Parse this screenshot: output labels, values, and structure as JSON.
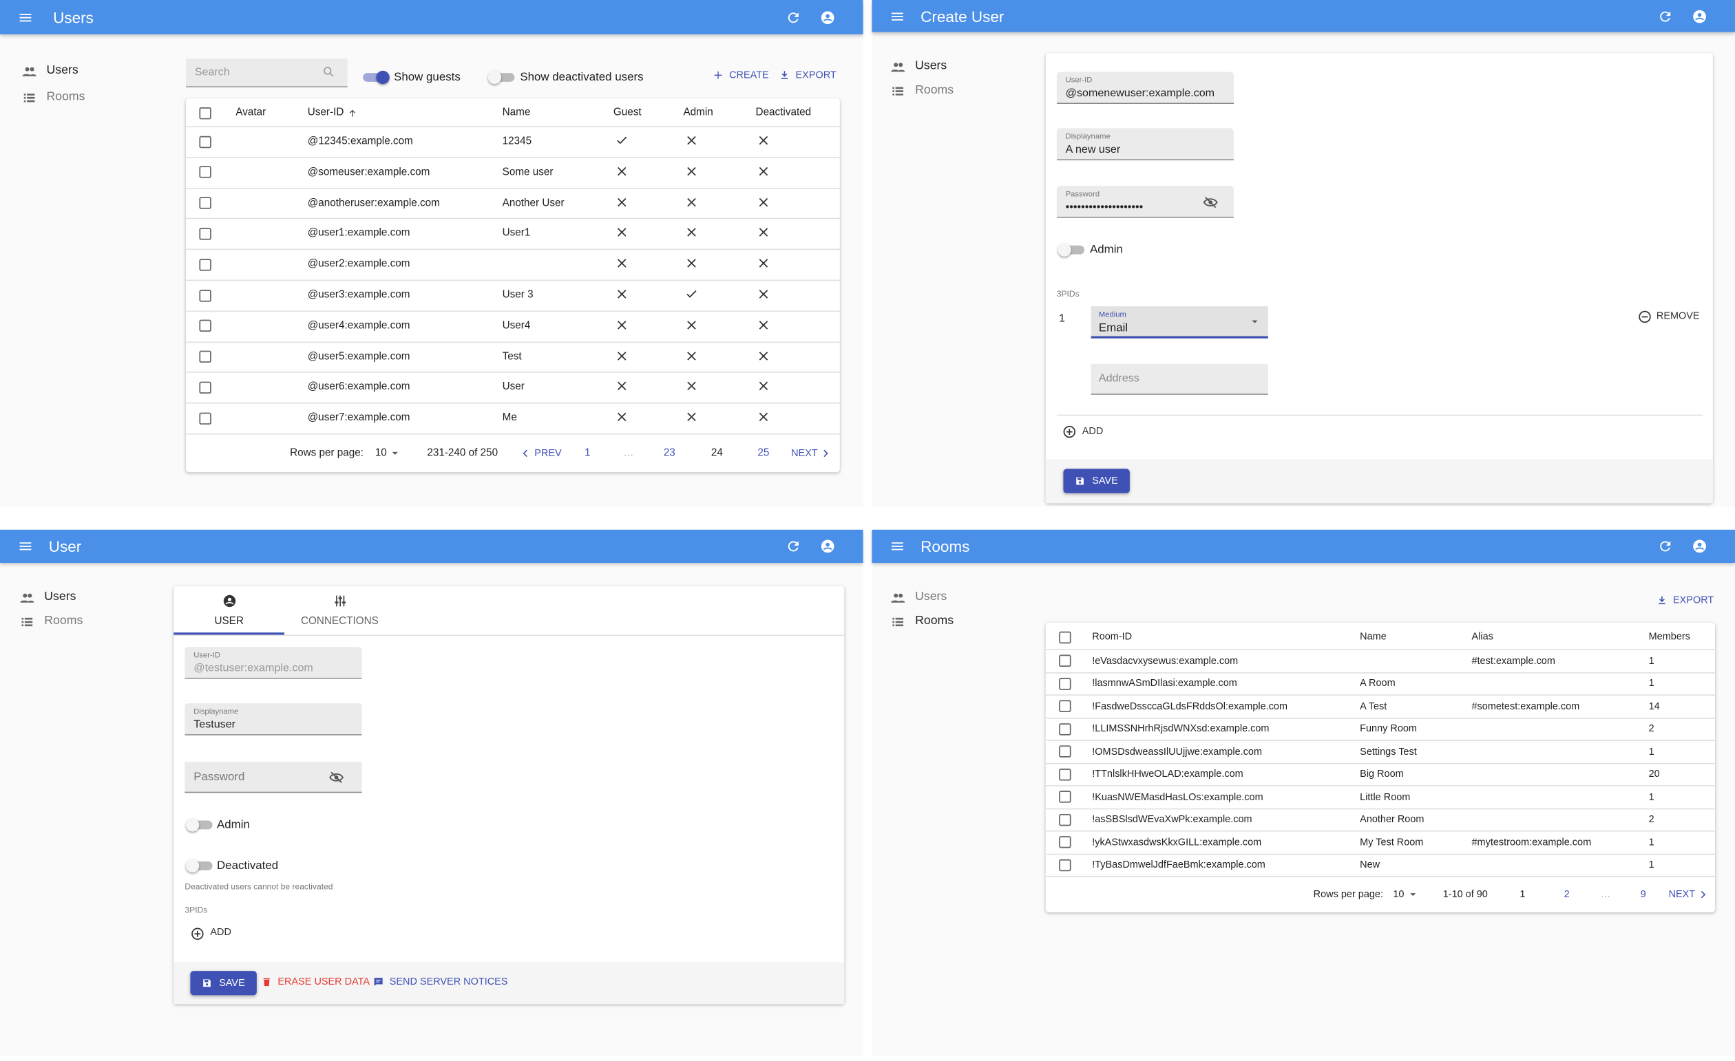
{
  "users_list": {
    "app_title": "Users",
    "nav": [
      "Users",
      "Rooms"
    ],
    "search_placeholder": "Search",
    "show_guests": "Show guests",
    "show_deactivated": "Show deactivated users",
    "create": "CREATE",
    "export": "EXPORT",
    "columns": [
      "Avatar",
      "User-ID",
      "Name",
      "Guest",
      "Admin",
      "Deactivated"
    ],
    "rows": [
      [
        "@12345:example.com",
        "12345",
        true,
        false,
        false
      ],
      [
        "@someuser:example.com",
        "Some user",
        false,
        false,
        false
      ],
      [
        "@anotheruser:example.com",
        "Another User",
        false,
        false,
        false
      ],
      [
        "@user1:example.com",
        "User1",
        false,
        false,
        false
      ],
      [
        "@user2:example.com",
        null,
        false,
        false,
        false
      ],
      [
        "@user3:example.com",
        "User 3",
        false,
        true,
        false
      ],
      [
        "@user4:example.com",
        "User4",
        false,
        false,
        false
      ],
      [
        "@user5:example.com",
        "Test",
        false,
        false,
        false
      ],
      [
        "@user6:example.com",
        "User",
        false,
        false,
        false
      ],
      [
        "@user7:example.com",
        "Me",
        false,
        false,
        false
      ]
    ],
    "pagination": {
      "rows_per_page_label": "Rows per page:",
      "rows_per_page": "10",
      "range": "231-240 of 250",
      "prev": "PREV",
      "pages": [
        "1",
        "…",
        "23",
        "24",
        "25"
      ],
      "next": "NEXT"
    }
  },
  "create_user": {
    "app_title": "Create User",
    "nav": [
      "Users",
      "Rooms"
    ],
    "fields": [
      {
        "label": "User-ID",
        "value": "@somenewuser:example.com"
      },
      {
        "label": "Displayname",
        "value": "A new user"
      },
      {
        "label": "Password",
        "value": "••••••••••••••••••••"
      }
    ],
    "admin": "Admin",
    "threepids_label": "3PIDs",
    "index": "1",
    "medium_label": "Medium",
    "medium_value": "Email",
    "address_placeholder": "Address",
    "remove": "REMOVE",
    "add": "ADD",
    "save": "SAVE"
  },
  "user_edit": {
    "app_title": "User",
    "nav": [
      "Users",
      "Rooms"
    ],
    "tabs": [
      "USER",
      "CONNECTIONS"
    ],
    "fields": [
      {
        "label": "User-ID",
        "value": "@testuser:example.com"
      },
      {
        "label": "Displayname",
        "value": "Testuser"
      }
    ],
    "password_placeholder": "Password",
    "admin": "Admin",
    "deactivated": "Deactivated",
    "deactivated_note": "Deactivated users cannot be reactivated",
    "threepids_label": "3PIDs",
    "add": "ADD",
    "save": "SAVE",
    "erase": "ERASE USER DATA",
    "notices": "SEND SERVER NOTICES"
  },
  "rooms_list": {
    "app_title": "Rooms",
    "nav": [
      "Users",
      "Rooms"
    ],
    "export": "EXPORT",
    "columns": [
      "Room-ID",
      "Name",
      "Alias",
      "Members"
    ],
    "rows": [
      [
        "!eVasdacvxysewus:example.com",
        null,
        "#test:example.com",
        1
      ],
      [
        "!lasmnwASmDIlasi:example.com",
        "A Room",
        null,
        1
      ],
      [
        "!FasdweDssccaGLdsFRddsOl:example.com",
        "A Test",
        "#sometest:example.com",
        14
      ],
      [
        "!LLIMSSNHrhRjsdWNXsd:example.com",
        "Funny Room",
        null,
        2
      ],
      [
        "!OMSDsdweassIlUUjjwe:example.com",
        "Settings Test",
        null,
        1
      ],
      [
        "!TTnlslkHHweOLAD:example.com",
        "Big Room",
        null,
        20
      ],
      [
        "!KuasNWEMasdHasLOs:example.com",
        "Little Room",
        null,
        1
      ],
      [
        "!asSBSlsdWEvaXwPk:example.com",
        "Another Room",
        null,
        2
      ],
      [
        "!ykAStwxasdwsKkxGILL:example.com",
        "My Test Room",
        "#mytestroom:example.com",
        1
      ],
      [
        "!TyBasDmwelJdfFaeBmk:example.com",
        "New",
        null,
        1
      ]
    ],
    "pagination": {
      "rows_per_page_label": "Rows per page:",
      "rows_per_page": "10",
      "range": "1-10 of 90",
      "pages": [
        "1",
        "2",
        "…",
        "9"
      ],
      "next": "NEXT"
    }
  }
}
